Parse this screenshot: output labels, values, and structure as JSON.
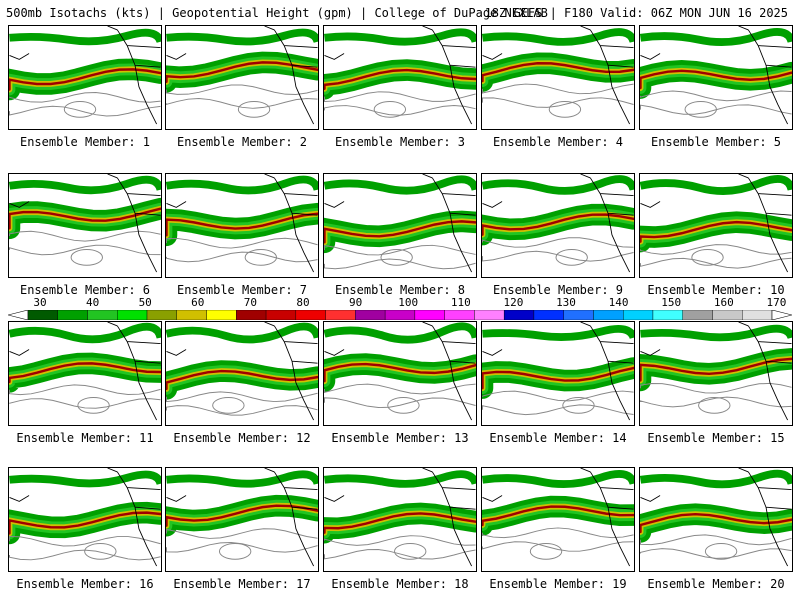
{
  "header": {
    "left": "500mb Isotachs (kts) | Geopotential Height (gpm) | College of DuPage NEXLAB",
    "right": "18Z GEFS | F180 Valid: 06Z MON JUN 16 2025"
  },
  "colorbar": {
    "labels": [
      "30",
      "40",
      "50",
      "60",
      "70",
      "80",
      "90",
      "100",
      "110",
      "120",
      "130",
      "140",
      "150",
      "160",
      "170"
    ],
    "colors": [
      "#005a00",
      "#00a000",
      "#22c422",
      "#00e000",
      "#8aa000",
      "#d0c000",
      "#ffff00",
      "#a00000",
      "#c80000",
      "#ee0000",
      "#ff3030",
      "#a000a0",
      "#c800c8",
      "#ff00ff",
      "#ff40ff",
      "#ff80ff",
      "#0000c8",
      "#0030ff",
      "#2070ff",
      "#00a0ff",
      "#00d0ff",
      "#40ffff",
      "#a0a0a0",
      "#c8c8c8",
      "#e0e0e0"
    ]
  },
  "members": [
    "Ensemble Member: 1",
    "Ensemble Member: 2",
    "Ensemble Member: 3",
    "Ensemble Member: 4",
    "Ensemble Member: 5",
    "Ensemble Member: 6",
    "Ensemble Member: 7",
    "Ensemble Member: 8",
    "Ensemble Member: 9",
    "Ensemble Member: 10",
    "Ensemble Member: 11",
    "Ensemble Member: 12",
    "Ensemble Member: 13",
    "Ensemble Member: 14",
    "Ensemble Member: 15",
    "Ensemble Member: 16",
    "Ensemble Member: 17",
    "Ensemble Member: 18",
    "Ensemble Member: 19",
    "Ensemble Member: 20"
  ]
}
